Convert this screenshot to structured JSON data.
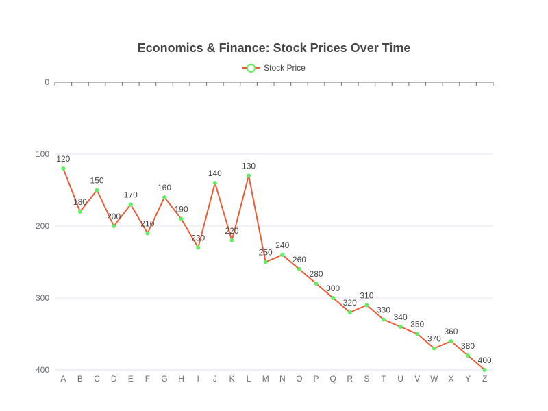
{
  "chart": {
    "title": "Economics & Finance: Stock Prices Over Time",
    "legend_label": "Stock Price"
  },
  "colors": {
    "line": "#ee5a35",
    "point": "#5ef05e",
    "grid": "#e0e6f1",
    "axis": "#6e7079"
  },
  "chart_data": {
    "type": "line",
    "title": "Economics & Finance: Stock Prices Over Time",
    "categories": [
      "A",
      "B",
      "C",
      "D",
      "E",
      "F",
      "G",
      "H",
      "I",
      "J",
      "K",
      "L",
      "M",
      "N",
      "O",
      "P",
      "Q",
      "R",
      "S",
      "T",
      "U",
      "V",
      "W",
      "X",
      "Y",
      "Z"
    ],
    "series": [
      {
        "name": "Stock Price",
        "values": [
          120,
          180,
          150,
          200,
          170,
          210,
          160,
          190,
          230,
          140,
          220,
          130,
          250,
          240,
          260,
          280,
          300,
          320,
          310,
          330,
          340,
          350,
          370,
          360,
          380,
          400
        ]
      }
    ],
    "y_axis": {
      "inverse": true,
      "min": 0,
      "max": 400,
      "ticks": [
        0,
        100,
        200,
        300,
        400
      ]
    },
    "xlabel": "",
    "ylabel": "",
    "grid": true,
    "legend_position": "top-center"
  }
}
